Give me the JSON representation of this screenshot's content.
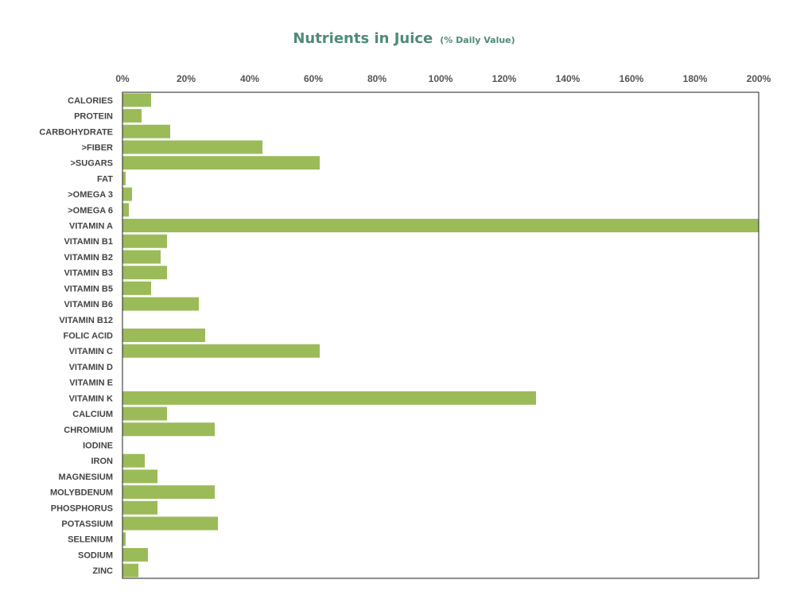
{
  "chart_data": {
    "type": "bar",
    "orientation": "horizontal",
    "title": "Nutrients in Juice",
    "subtitle": "(% Daily Value)",
    "xlim": [
      0,
      200
    ],
    "x_ticks": [
      "0%",
      "20%",
      "40%",
      "60%",
      "80%",
      "100%",
      "120%",
      "140%",
      "160%",
      "180%",
      "200%"
    ],
    "x_tick_values": [
      0,
      20,
      40,
      60,
      80,
      100,
      120,
      140,
      160,
      180,
      200
    ],
    "grid": false,
    "bar_color": "#9bbb59",
    "categories": [
      "CALORIES",
      "PROTEIN",
      "CARBOHYDRATE",
      ">FIBER",
      ">SUGARS",
      "FAT",
      ">OMEGA 3",
      ">OMEGA 6",
      "VITAMIN A",
      "VITAMIN B1",
      "VITAMIN B2",
      "VITAMIN B3",
      "VITAMIN B5",
      "VITAMIN B6",
      "VITAMIN B12",
      "FOLIC ACID",
      "VITAMIN C",
      "VITAMIN D",
      "VITAMIN E",
      "VITAMIN K",
      "CALCIUM",
      "CHROMIUM",
      "IODINE",
      "IRON",
      "MAGNESIUM",
      "MOLYBDENUM",
      "PHOSPHORUS",
      "POTASSIUM",
      "SELENIUM",
      "SODIUM",
      "ZINC"
    ],
    "values": [
      9,
      6,
      15,
      44,
      62,
      1,
      3,
      2,
      200,
      14,
      12,
      14,
      9,
      24,
      0,
      26,
      62,
      0,
      0,
      130,
      14,
      29,
      0,
      7,
      11,
      29,
      11,
      30,
      1,
      8,
      5
    ]
  }
}
